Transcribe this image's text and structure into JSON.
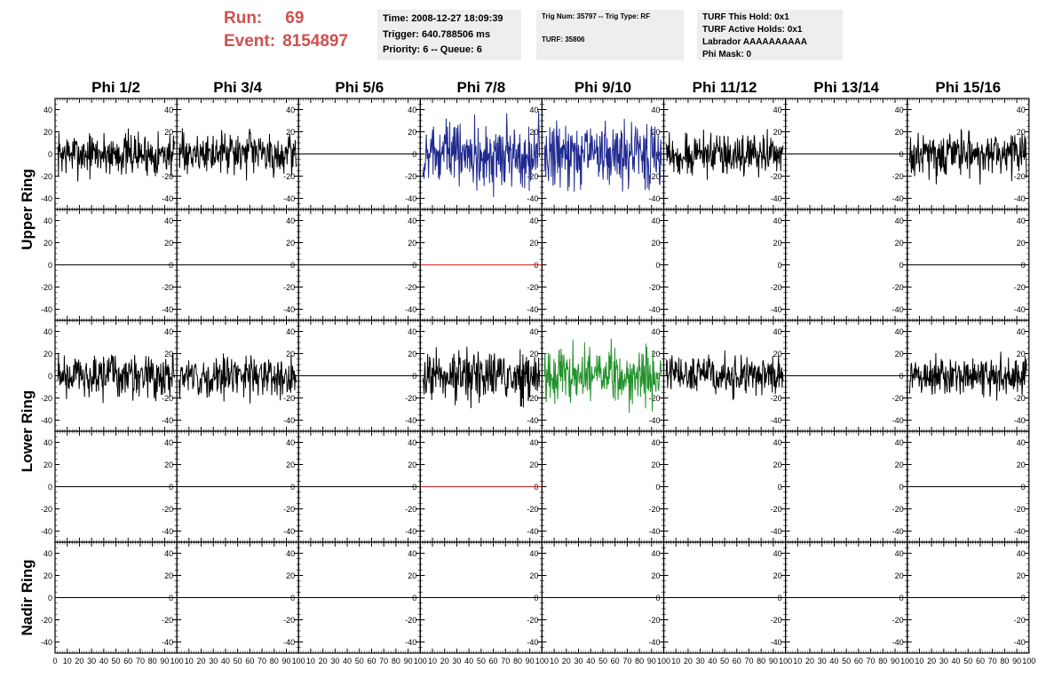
{
  "header": {
    "run_label": "Run:",
    "run_value": "69",
    "event_label": "Event:",
    "event_value": "8154897"
  },
  "info_boxes": [
    {
      "lines": [
        "Time: 2008-12-27 18:09:39",
        "Trigger: 640.788506 ms",
        "Priority: 6 -- Queue: 6"
      ]
    },
    {
      "lines": [
        "Trig Num: 35797 -- Trig Type: RF",
        "TURF: 35806"
      ]
    },
    {
      "lines": [
        "TURF This Hold: 0x1",
        "TURF Active Holds: 0x1",
        "Labrador AAAAAAAAAA",
        "Phi Mask: 0"
      ]
    }
  ],
  "colors": {
    "accent": "#d0504f",
    "info_bg": "#eeeeee",
    "trace_default": "#000000",
    "trace_blue": "#1f2a8f",
    "trace_green": "#22922b",
    "trace_red": "#d02020"
  },
  "chart_data": {
    "type": "line",
    "columns": [
      "Phi 1/2",
      "Phi 3/4",
      "Phi 5/6",
      "Phi 7/8",
      "Phi 9/10",
      "Phi 11/12",
      "Phi 13/14",
      "Phi 15/16"
    ],
    "rows": [
      "Upper Ring",
      "",
      "Lower Ring",
      "",
      "Nadir Ring"
    ],
    "xlim": [
      0,
      100
    ],
    "ylim": [
      -50,
      50
    ],
    "x_ticks": [
      0,
      10,
      20,
      30,
      40,
      50,
      60,
      70,
      80,
      90,
      100
    ],
    "x_tick_labels": [
      "0",
      "10",
      "20",
      "30",
      "40",
      "50",
      "60",
      "70",
      "80",
      "90",
      "100"
    ],
    "y_ticks": [
      -40,
      -20,
      0,
      20,
      40
    ],
    "y_tick_labels": [
      "-40",
      "-20",
      "0",
      "20",
      "40"
    ],
    "grid": false,
    "panels": [
      [
        {
          "kind": "noise",
          "amp": 15,
          "color": "#000000"
        },
        {
          "kind": "noise",
          "amp": 14,
          "color": "#000000"
        },
        {
          "kind": "flat",
          "color": "#000000"
        },
        {
          "kind": "noise",
          "amp": 22,
          "color": "#1f2a8f"
        },
        {
          "kind": "noise",
          "amp": 22,
          "color": "#1f2a8f"
        },
        {
          "kind": "noise",
          "amp": 14,
          "color": "#000000"
        },
        {
          "kind": "flat",
          "color": "#000000"
        },
        {
          "kind": "noise",
          "amp": 16,
          "color": "#000000"
        }
      ],
      [
        {
          "kind": "flat",
          "color": "#000000"
        },
        {
          "kind": "flat",
          "color": "#000000"
        },
        {
          "kind": "flat",
          "color": "#000000"
        },
        {
          "kind": "flat",
          "color": "#d02020"
        },
        {
          "kind": "none"
        },
        {
          "kind": "none"
        },
        {
          "kind": "none"
        },
        {
          "kind": "flat",
          "color": "#000000"
        }
      ],
      [
        {
          "kind": "noise",
          "amp": 15,
          "color": "#000000"
        },
        {
          "kind": "noise",
          "amp": 14,
          "color": "#000000"
        },
        {
          "kind": "flat",
          "color": "#000000"
        },
        {
          "kind": "noise",
          "amp": 17,
          "color": "#000000"
        },
        {
          "kind": "noise",
          "amp": 19,
          "color": "#22922b"
        },
        {
          "kind": "noise",
          "amp": 14,
          "color": "#000000"
        },
        {
          "kind": "flat",
          "color": "#000000"
        },
        {
          "kind": "noise",
          "amp": 14,
          "color": "#000000"
        }
      ],
      [
        {
          "kind": "flat",
          "color": "#000000"
        },
        {
          "kind": "flat",
          "color": "#000000"
        },
        {
          "kind": "flat",
          "color": "#000000"
        },
        {
          "kind": "flat",
          "color": "#d02020"
        },
        {
          "kind": "none"
        },
        {
          "kind": "none"
        },
        {
          "kind": "none"
        },
        {
          "kind": "flat",
          "color": "#000000"
        }
      ],
      [
        {
          "kind": "flat",
          "color": "#000000"
        },
        {
          "kind": "flat",
          "color": "#000000"
        },
        {
          "kind": "flat",
          "color": "#000000"
        },
        {
          "kind": "flat",
          "color": "#000000"
        },
        {
          "kind": "flat",
          "color": "#000000"
        },
        {
          "kind": "flat",
          "color": "#000000"
        },
        {
          "kind": "flat",
          "color": "#000000"
        },
        {
          "kind": "flat",
          "color": "#000000"
        }
      ]
    ]
  }
}
